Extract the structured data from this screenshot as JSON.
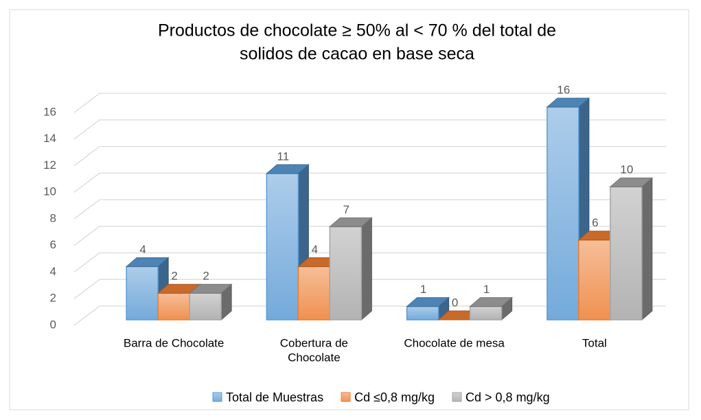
{
  "chart_data": {
    "type": "bar3d",
    "title": [
      "Productos de chocolate ≥ 50% al < 70 % del total de",
      "solidos de cacao en base seca"
    ],
    "categories": [
      "Barra de Chocolate",
      [
        "Cobertura de",
        "Chocolate"
      ],
      "Chocolate de mesa",
      "Total"
    ],
    "series": [
      {
        "name": "Total de Muestras",
        "color": "#5b9bd5",
        "values": [
          4,
          11,
          1,
          16
        ]
      },
      {
        "name": "Cd ≤0,8 mg/kg",
        "color": "#ed7d31",
        "values": [
          2,
          4,
          0,
          6
        ]
      },
      {
        "name": "Cd > 0,8 mg/kg",
        "color": "#a5a5a5",
        "values": [
          2,
          7,
          1,
          10
        ]
      }
    ],
    "ylim": [
      0,
      16
    ],
    "yticks": [
      0,
      2,
      4,
      6,
      8,
      10,
      12,
      14,
      16
    ],
    "grid": true
  }
}
